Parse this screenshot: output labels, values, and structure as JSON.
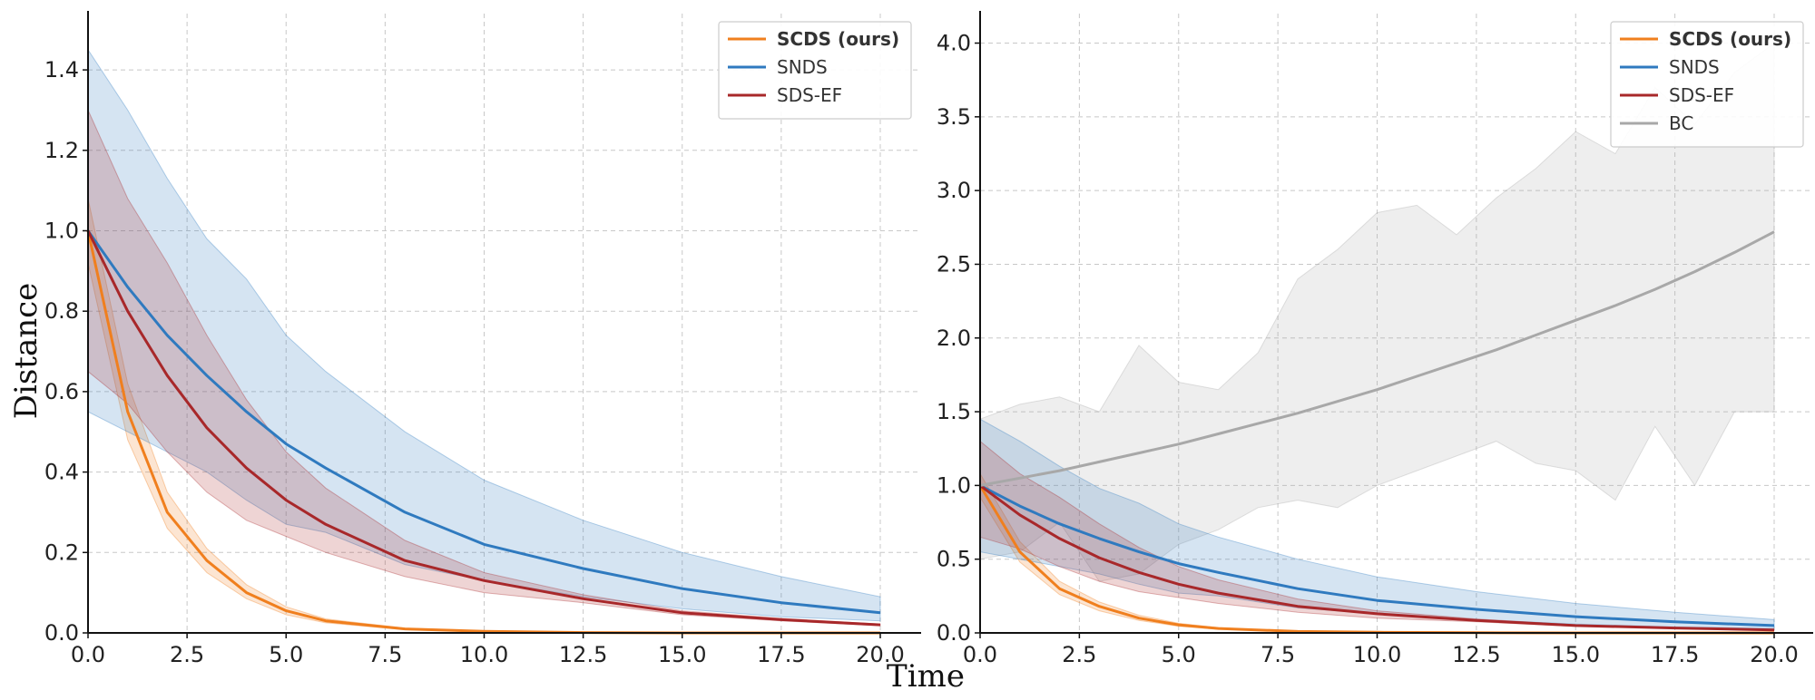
{
  "figure": {
    "xlabel": "Time",
    "ylabel": "Distance"
  },
  "colors": {
    "SCDS": "#f07f1e",
    "SNDS": "#2f7abf",
    "SDS-EF": "#a8282a",
    "BC": "#a8a8a8"
  },
  "chart_data": [
    {
      "type": "line",
      "xlabel": "Time",
      "ylabel": "Distance",
      "xlim": [
        0,
        20
      ],
      "ylim": [
        0,
        1.54
      ],
      "xticks": [
        "0.0",
        "2.5",
        "5.0",
        "7.5",
        "10.0",
        "12.5",
        "15.0",
        "17.5",
        "20.0"
      ],
      "yticks": [
        "0.0",
        "0.2",
        "0.4",
        "0.6",
        "0.8",
        "1.0",
        "1.2",
        "1.4"
      ],
      "grid": true,
      "legend_position": "top-right",
      "series": [
        {
          "name": "SCDS (ours)",
          "color": "#f07f1e",
          "bold": true,
          "x": [
            0,
            1,
            2,
            3,
            4,
            5,
            6,
            8,
            10,
            12.5,
            15,
            17.5,
            20
          ],
          "y": [
            1.0,
            0.55,
            0.3,
            0.18,
            0.1,
            0.055,
            0.03,
            0.01,
            0.004,
            0.001,
            0.0,
            0.0,
            0.0
          ],
          "band_upper": [
            1.08,
            0.62,
            0.35,
            0.21,
            0.12,
            0.065,
            0.035,
            0.012,
            0.005,
            0.001,
            0.0,
            0.0,
            0.0
          ],
          "band_lower": [
            0.92,
            0.48,
            0.26,
            0.15,
            0.085,
            0.045,
            0.025,
            0.008,
            0.003,
            0.0,
            0.0,
            0.0,
            0.0
          ]
        },
        {
          "name": "SNDS",
          "color": "#2f7abf",
          "bold": false,
          "x": [
            0,
            1,
            2,
            3,
            4,
            5,
            6,
            8,
            10,
            12.5,
            15,
            17.5,
            20
          ],
          "y": [
            1.0,
            0.86,
            0.74,
            0.64,
            0.55,
            0.47,
            0.41,
            0.3,
            0.22,
            0.16,
            0.11,
            0.075,
            0.05
          ],
          "band_upper": [
            1.45,
            1.3,
            1.13,
            0.98,
            0.88,
            0.74,
            0.65,
            0.5,
            0.38,
            0.28,
            0.2,
            0.14,
            0.09
          ],
          "band_lower": [
            0.55,
            0.5,
            0.45,
            0.4,
            0.33,
            0.27,
            0.25,
            0.17,
            0.13,
            0.09,
            0.06,
            0.04,
            0.03
          ]
        },
        {
          "name": "SDS-EF",
          "color": "#a8282a",
          "bold": false,
          "x": [
            0,
            1,
            2,
            3,
            4,
            5,
            6,
            8,
            10,
            12.5,
            15,
            17.5,
            20
          ],
          "y": [
            1.0,
            0.8,
            0.64,
            0.51,
            0.41,
            0.33,
            0.27,
            0.18,
            0.13,
            0.085,
            0.05,
            0.033,
            0.02
          ],
          "band_upper": [
            1.3,
            1.08,
            0.92,
            0.74,
            0.58,
            0.45,
            0.36,
            0.23,
            0.15,
            0.095,
            0.055,
            0.036,
            0.022
          ],
          "band_lower": [
            0.65,
            0.57,
            0.45,
            0.35,
            0.28,
            0.24,
            0.2,
            0.14,
            0.1,
            0.075,
            0.045,
            0.03,
            0.018
          ]
        }
      ]
    },
    {
      "type": "line",
      "xlabel": "Time",
      "ylabel": "",
      "xlim": [
        0,
        20
      ],
      "ylim": [
        0,
        4.2
      ],
      "xticks": [
        "0.0",
        "2.5",
        "5.0",
        "7.5",
        "10.0",
        "12.5",
        "15.0",
        "17.5",
        "20.0"
      ],
      "yticks": [
        "0.0",
        "0.5",
        "1.0",
        "1.5",
        "2.0",
        "2.5",
        "3.0",
        "3.5",
        "4.0"
      ],
      "grid": true,
      "legend_position": "top-right",
      "series": [
        {
          "name": "SCDS (ours)",
          "color": "#f07f1e",
          "bold": true,
          "x": [
            0,
            1,
            2,
            3,
            4,
            5,
            6,
            8,
            10,
            12.5,
            15,
            17.5,
            20
          ],
          "y": [
            1.0,
            0.55,
            0.3,
            0.18,
            0.1,
            0.055,
            0.03,
            0.01,
            0.004,
            0.001,
            0.0,
            0.0,
            0.0
          ],
          "band_upper": [
            1.08,
            0.62,
            0.35,
            0.21,
            0.12,
            0.065,
            0.035,
            0.012,
            0.005,
            0.001,
            0.0,
            0.0,
            0.0
          ],
          "band_lower": [
            0.92,
            0.48,
            0.26,
            0.15,
            0.085,
            0.045,
            0.025,
            0.008,
            0.003,
            0.0,
            0.0,
            0.0,
            0.0
          ]
        },
        {
          "name": "SNDS",
          "color": "#2f7abf",
          "bold": false,
          "x": [
            0,
            1,
            2,
            3,
            4,
            5,
            6,
            8,
            10,
            12.5,
            15,
            17.5,
            20
          ],
          "y": [
            1.0,
            0.86,
            0.74,
            0.64,
            0.55,
            0.47,
            0.41,
            0.3,
            0.22,
            0.16,
            0.11,
            0.075,
            0.05
          ],
          "band_upper": [
            1.45,
            1.3,
            1.13,
            0.98,
            0.88,
            0.74,
            0.65,
            0.5,
            0.38,
            0.28,
            0.2,
            0.14,
            0.09
          ],
          "band_lower": [
            0.55,
            0.5,
            0.45,
            0.4,
            0.33,
            0.27,
            0.25,
            0.17,
            0.13,
            0.09,
            0.06,
            0.04,
            0.03
          ]
        },
        {
          "name": "SDS-EF",
          "color": "#a8282a",
          "bold": false,
          "x": [
            0,
            1,
            2,
            3,
            4,
            5,
            6,
            8,
            10,
            12.5,
            15,
            17.5,
            20
          ],
          "y": [
            1.0,
            0.8,
            0.64,
            0.51,
            0.41,
            0.33,
            0.27,
            0.18,
            0.13,
            0.085,
            0.05,
            0.033,
            0.02
          ],
          "band_upper": [
            1.3,
            1.08,
            0.92,
            0.74,
            0.58,
            0.45,
            0.36,
            0.23,
            0.15,
            0.095,
            0.055,
            0.036,
            0.022
          ],
          "band_lower": [
            0.65,
            0.57,
            0.45,
            0.35,
            0.28,
            0.24,
            0.2,
            0.14,
            0.1,
            0.075,
            0.045,
            0.03,
            0.018
          ]
        },
        {
          "name": "BC",
          "color": "#a8a8a8",
          "bold": false,
          "x": [
            0,
            1,
            2,
            3,
            4,
            5,
            6,
            7,
            8,
            9,
            10,
            11,
            12,
            13,
            14,
            15,
            16,
            17,
            18,
            19,
            20
          ],
          "y": [
            1.0,
            1.05,
            1.1,
            1.16,
            1.22,
            1.28,
            1.35,
            1.42,
            1.49,
            1.57,
            1.65,
            1.74,
            1.83,
            1.92,
            2.02,
            2.12,
            2.22,
            2.33,
            2.45,
            2.58,
            2.72
          ],
          "band_upper": [
            1.45,
            1.55,
            1.6,
            1.5,
            1.95,
            1.7,
            1.65,
            1.9,
            2.4,
            2.6,
            2.85,
            2.9,
            2.7,
            2.95,
            3.15,
            3.4,
            3.25,
            3.7,
            3.45,
            3.8,
            4.0
          ],
          "band_lower": [
            0.5,
            0.55,
            0.75,
            0.35,
            0.4,
            0.6,
            0.7,
            0.85,
            0.9,
            0.85,
            1.0,
            1.1,
            1.2,
            1.3,
            1.15,
            1.1,
            0.9,
            1.4,
            1.0,
            1.5,
            1.5
          ]
        }
      ]
    }
  ]
}
